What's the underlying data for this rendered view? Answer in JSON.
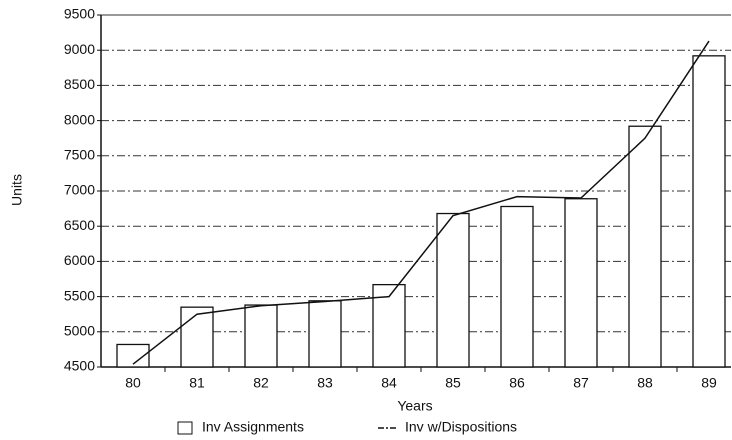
{
  "chart_data": {
    "type": "bar_line",
    "x_label": "Years",
    "y_label": "Units",
    "categories": [
      "80",
      "81",
      "82",
      "83",
      "84",
      "85",
      "86",
      "87",
      "88",
      "89"
    ],
    "series": [
      {
        "name": "Inv Assignments",
        "type": "bar",
        "color": "#ffffff",
        "values": [
          4820,
          5350,
          5380,
          5440,
          5670,
          6680,
          6780,
          6890,
          7920,
          8920
        ]
      },
      {
        "name": "Inv w/Dispositions",
        "type": "line",
        "color": "#111111",
        "values": [
          4540,
          5250,
          5370,
          5430,
          5500,
          6650,
          6920,
          6900,
          7750,
          9130
        ]
      }
    ],
    "ylim": [
      4500,
      9500
    ],
    "yticks": [
      4500,
      5000,
      5500,
      6000,
      6500,
      7000,
      7500,
      8000,
      8500,
      9000,
      9500
    ],
    "grid": true
  }
}
